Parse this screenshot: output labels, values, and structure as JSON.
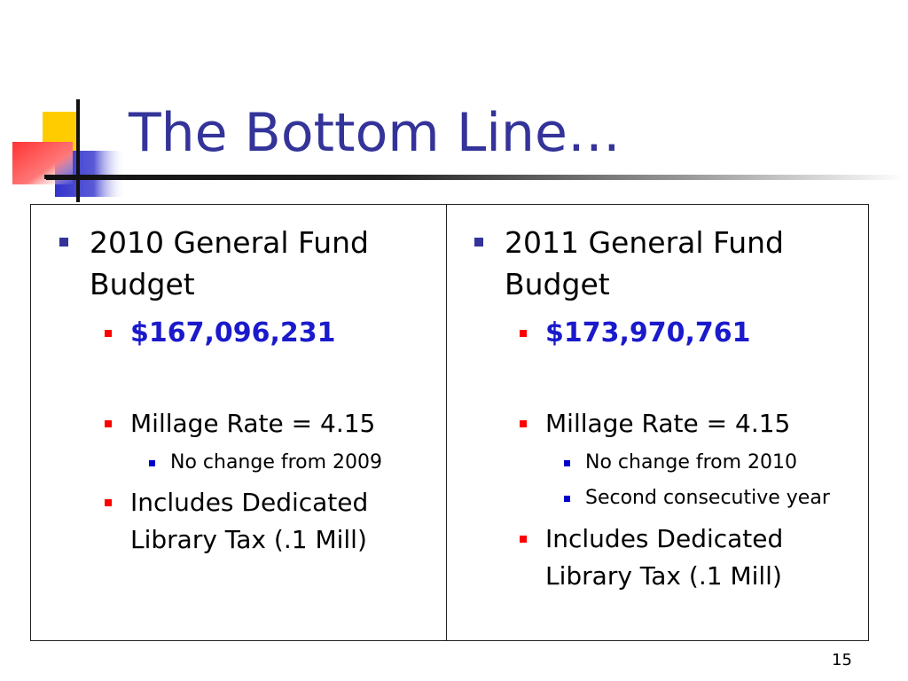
{
  "slide": {
    "title": "The Bottom Line…",
    "page_number": "15"
  },
  "colors": {
    "title": "#333399",
    "amount": "#1a1acc",
    "level1_bullet": "#333399",
    "level2_bullet": "#ff0000",
    "level3_bullet": "#0000cc"
  },
  "left": {
    "heading_line1": "2010 General Fund",
    "heading_line2": "Budget",
    "amount": "$167,096,231",
    "millage": "Millage Rate = 4.15",
    "millage_note1": "No change from 2009",
    "library_line1": "Includes Dedicated",
    "library_line2": "Library Tax (.1 Mill)"
  },
  "right": {
    "heading_line1": "2011 General Fund",
    "heading_line2": "Budget",
    "amount": "$173,970,761",
    "millage": "Millage Rate = 4.15",
    "millage_note1": "No change from 2010",
    "millage_note2": "Second consecutive year",
    "library_line1": "Includes Dedicated",
    "library_line2": "Library Tax (.1 Mill)"
  }
}
